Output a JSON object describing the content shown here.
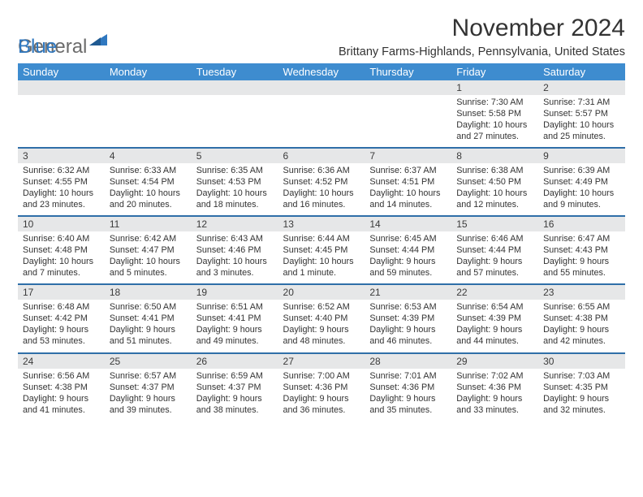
{
  "brand": {
    "part1": "General",
    "part2": "Blue"
  },
  "title": "November 2024",
  "location": "Brittany Farms-Highlands, Pennsylvania, United States",
  "dow": [
    "Sunday",
    "Monday",
    "Tuesday",
    "Wednesday",
    "Thursday",
    "Friday",
    "Saturday"
  ],
  "colors": {
    "header_bg": "#3e8ccf",
    "header_text": "#ffffff",
    "daynum_bg": "#e6e7e8",
    "rule": "#2f6fa8",
    "brand_gray": "#6b6b6b",
    "brand_blue": "#2f78c0"
  },
  "type": "calendar",
  "weeks": [
    [
      null,
      null,
      null,
      null,
      null,
      {
        "n": "1",
        "sunrise": "Sunrise: 7:30 AM",
        "sunset": "Sunset: 5:58 PM",
        "daylight": "Daylight: 10 hours and 27 minutes."
      },
      {
        "n": "2",
        "sunrise": "Sunrise: 7:31 AM",
        "sunset": "Sunset: 5:57 PM",
        "daylight": "Daylight: 10 hours and 25 minutes."
      }
    ],
    [
      {
        "n": "3",
        "sunrise": "Sunrise: 6:32 AM",
        "sunset": "Sunset: 4:55 PM",
        "daylight": "Daylight: 10 hours and 23 minutes."
      },
      {
        "n": "4",
        "sunrise": "Sunrise: 6:33 AM",
        "sunset": "Sunset: 4:54 PM",
        "daylight": "Daylight: 10 hours and 20 minutes."
      },
      {
        "n": "5",
        "sunrise": "Sunrise: 6:35 AM",
        "sunset": "Sunset: 4:53 PM",
        "daylight": "Daylight: 10 hours and 18 minutes."
      },
      {
        "n": "6",
        "sunrise": "Sunrise: 6:36 AM",
        "sunset": "Sunset: 4:52 PM",
        "daylight": "Daylight: 10 hours and 16 minutes."
      },
      {
        "n": "7",
        "sunrise": "Sunrise: 6:37 AM",
        "sunset": "Sunset: 4:51 PM",
        "daylight": "Daylight: 10 hours and 14 minutes."
      },
      {
        "n": "8",
        "sunrise": "Sunrise: 6:38 AM",
        "sunset": "Sunset: 4:50 PM",
        "daylight": "Daylight: 10 hours and 12 minutes."
      },
      {
        "n": "9",
        "sunrise": "Sunrise: 6:39 AM",
        "sunset": "Sunset: 4:49 PM",
        "daylight": "Daylight: 10 hours and 9 minutes."
      }
    ],
    [
      {
        "n": "10",
        "sunrise": "Sunrise: 6:40 AM",
        "sunset": "Sunset: 4:48 PM",
        "daylight": "Daylight: 10 hours and 7 minutes."
      },
      {
        "n": "11",
        "sunrise": "Sunrise: 6:42 AM",
        "sunset": "Sunset: 4:47 PM",
        "daylight": "Daylight: 10 hours and 5 minutes."
      },
      {
        "n": "12",
        "sunrise": "Sunrise: 6:43 AM",
        "sunset": "Sunset: 4:46 PM",
        "daylight": "Daylight: 10 hours and 3 minutes."
      },
      {
        "n": "13",
        "sunrise": "Sunrise: 6:44 AM",
        "sunset": "Sunset: 4:45 PM",
        "daylight": "Daylight: 10 hours and 1 minute."
      },
      {
        "n": "14",
        "sunrise": "Sunrise: 6:45 AM",
        "sunset": "Sunset: 4:44 PM",
        "daylight": "Daylight: 9 hours and 59 minutes."
      },
      {
        "n": "15",
        "sunrise": "Sunrise: 6:46 AM",
        "sunset": "Sunset: 4:44 PM",
        "daylight": "Daylight: 9 hours and 57 minutes."
      },
      {
        "n": "16",
        "sunrise": "Sunrise: 6:47 AM",
        "sunset": "Sunset: 4:43 PM",
        "daylight": "Daylight: 9 hours and 55 minutes."
      }
    ],
    [
      {
        "n": "17",
        "sunrise": "Sunrise: 6:48 AM",
        "sunset": "Sunset: 4:42 PM",
        "daylight": "Daylight: 9 hours and 53 minutes."
      },
      {
        "n": "18",
        "sunrise": "Sunrise: 6:50 AM",
        "sunset": "Sunset: 4:41 PM",
        "daylight": "Daylight: 9 hours and 51 minutes."
      },
      {
        "n": "19",
        "sunrise": "Sunrise: 6:51 AM",
        "sunset": "Sunset: 4:41 PM",
        "daylight": "Daylight: 9 hours and 49 minutes."
      },
      {
        "n": "20",
        "sunrise": "Sunrise: 6:52 AM",
        "sunset": "Sunset: 4:40 PM",
        "daylight": "Daylight: 9 hours and 48 minutes."
      },
      {
        "n": "21",
        "sunrise": "Sunrise: 6:53 AM",
        "sunset": "Sunset: 4:39 PM",
        "daylight": "Daylight: 9 hours and 46 minutes."
      },
      {
        "n": "22",
        "sunrise": "Sunrise: 6:54 AM",
        "sunset": "Sunset: 4:39 PM",
        "daylight": "Daylight: 9 hours and 44 minutes."
      },
      {
        "n": "23",
        "sunrise": "Sunrise: 6:55 AM",
        "sunset": "Sunset: 4:38 PM",
        "daylight": "Daylight: 9 hours and 42 minutes."
      }
    ],
    [
      {
        "n": "24",
        "sunrise": "Sunrise: 6:56 AM",
        "sunset": "Sunset: 4:38 PM",
        "daylight": "Daylight: 9 hours and 41 minutes."
      },
      {
        "n": "25",
        "sunrise": "Sunrise: 6:57 AM",
        "sunset": "Sunset: 4:37 PM",
        "daylight": "Daylight: 9 hours and 39 minutes."
      },
      {
        "n": "26",
        "sunrise": "Sunrise: 6:59 AM",
        "sunset": "Sunset: 4:37 PM",
        "daylight": "Daylight: 9 hours and 38 minutes."
      },
      {
        "n": "27",
        "sunrise": "Sunrise: 7:00 AM",
        "sunset": "Sunset: 4:36 PM",
        "daylight": "Daylight: 9 hours and 36 minutes."
      },
      {
        "n": "28",
        "sunrise": "Sunrise: 7:01 AM",
        "sunset": "Sunset: 4:36 PM",
        "daylight": "Daylight: 9 hours and 35 minutes."
      },
      {
        "n": "29",
        "sunrise": "Sunrise: 7:02 AM",
        "sunset": "Sunset: 4:36 PM",
        "daylight": "Daylight: 9 hours and 33 minutes."
      },
      {
        "n": "30",
        "sunrise": "Sunrise: 7:03 AM",
        "sunset": "Sunset: 4:35 PM",
        "daylight": "Daylight: 9 hours and 32 minutes."
      }
    ]
  ]
}
